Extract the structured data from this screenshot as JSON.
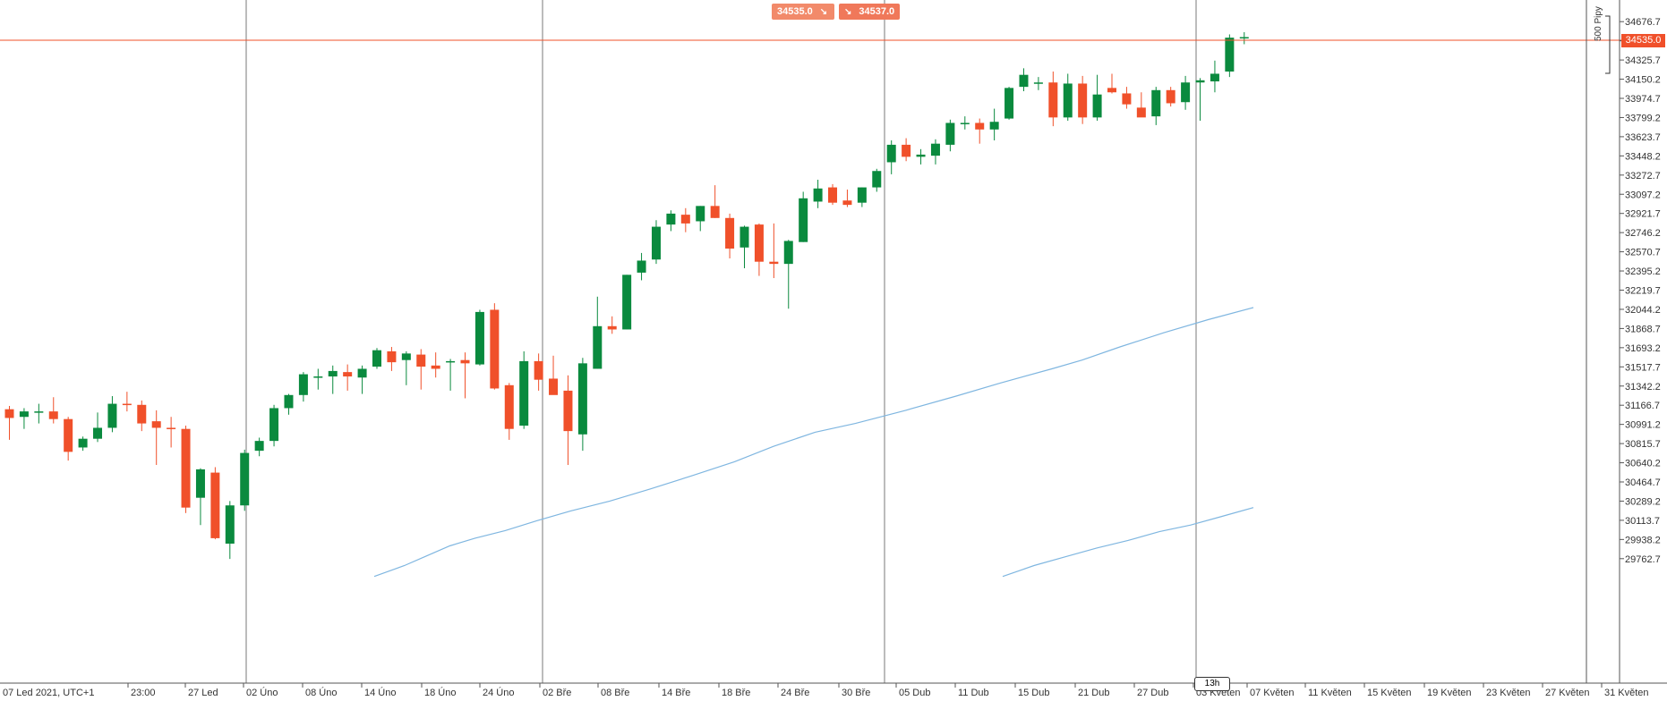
{
  "price_tags": {
    "bid": "34535.0",
    "ask": "34537.0",
    "current": "34535.0",
    "pips": "500 Pipy",
    "timer": "13h"
  },
  "colors": {
    "up": "#0a8a3e",
    "down": "#f0502a",
    "ma": "#7fb6e0",
    "grid": "#7a7a7a",
    "priceline": "#f0502a"
  },
  "chart_data": {
    "type": "candlestick",
    "ylim": [
      29620,
      34760
    ],
    "y_ticks": [
      "34676.7",
      "34501.2",
      "34325.7",
      "34150.2",
      "33974.7",
      "33799.2",
      "33623.7",
      "33448.2",
      "33272.7",
      "33097.2",
      "32921.7",
      "32746.2",
      "32570.7",
      "32395.2",
      "32219.7",
      "32044.2",
      "31868.7",
      "31693.2",
      "31517.7",
      "31342.2",
      "31166.7",
      "30991.2",
      "30815.7",
      "30640.2",
      "30464.7",
      "30289.2",
      "30113.7",
      "29938.2",
      "29762.7"
    ],
    "x_labels": [
      "07 Led 2021, UTC+1",
      "23:00",
      "27 Led",
      "02 Úno",
      "08 Úno",
      "14 Úno",
      "18 Úno",
      "24 Úno",
      "02 Bře",
      "08 Bře",
      "14 Bře",
      "18 Bře",
      "24 Bře",
      "30 Bře",
      "05 Dub",
      "11 Dub",
      "15 Dub",
      "21 Dub",
      "27 Dub",
      "03 Květen",
      "07 Květen",
      "11 Květen",
      "15 Květen",
      "19 Květen",
      "23 Květen",
      "27 Květen",
      "31 Květen"
    ],
    "candles": [
      {
        "o": 31130,
        "h": 31160,
        "l": 30850,
        "c": 31050
      },
      {
        "o": 31060,
        "h": 31140,
        "l": 30950,
        "c": 31110
      },
      {
        "o": 31100,
        "h": 31180,
        "l": 31000,
        "c": 31110
      },
      {
        "o": 31110,
        "h": 31240,
        "l": 31000,
        "c": 31040
      },
      {
        "o": 31040,
        "h": 31060,
        "l": 30660,
        "c": 30740
      },
      {
        "o": 30780,
        "h": 30880,
        "l": 30750,
        "c": 30860
      },
      {
        "o": 30860,
        "h": 31100,
        "l": 30830,
        "c": 30960
      },
      {
        "o": 30960,
        "h": 31250,
        "l": 30920,
        "c": 31180
      },
      {
        "o": 31180,
        "h": 31290,
        "l": 31110,
        "c": 31170
      },
      {
        "o": 31170,
        "h": 31210,
        "l": 30930,
        "c": 31000
      },
      {
        "o": 31020,
        "h": 31120,
        "l": 30620,
        "c": 30960
      },
      {
        "o": 30960,
        "h": 31060,
        "l": 30780,
        "c": 30950
      },
      {
        "o": 30950,
        "h": 30980,
        "l": 30180,
        "c": 30230
      },
      {
        "o": 30320,
        "h": 30590,
        "l": 30070,
        "c": 30580
      },
      {
        "o": 30550,
        "h": 30600,
        "l": 29940,
        "c": 29950
      },
      {
        "o": 29900,
        "h": 30290,
        "l": 29760,
        "c": 30250
      },
      {
        "o": 30250,
        "h": 30760,
        "l": 30200,
        "c": 30730
      },
      {
        "o": 30750,
        "h": 30870,
        "l": 30700,
        "c": 30840
      },
      {
        "o": 30840,
        "h": 31170,
        "l": 30790,
        "c": 31140
      },
      {
        "o": 31140,
        "h": 31270,
        "l": 31080,
        "c": 31260
      },
      {
        "o": 31260,
        "h": 31470,
        "l": 31200,
        "c": 31450
      },
      {
        "o": 31420,
        "h": 31500,
        "l": 31310,
        "c": 31430
      },
      {
        "o": 31430,
        "h": 31530,
        "l": 31270,
        "c": 31480
      },
      {
        "o": 31470,
        "h": 31540,
        "l": 31300,
        "c": 31430
      },
      {
        "o": 31420,
        "h": 31530,
        "l": 31270,
        "c": 31500
      },
      {
        "o": 31520,
        "h": 31690,
        "l": 31500,
        "c": 31670
      },
      {
        "o": 31660,
        "h": 31700,
        "l": 31480,
        "c": 31560
      },
      {
        "o": 31580,
        "h": 31660,
        "l": 31350,
        "c": 31640
      },
      {
        "o": 31630,
        "h": 31680,
        "l": 31310,
        "c": 31520
      },
      {
        "o": 31530,
        "h": 31650,
        "l": 31420,
        "c": 31500
      },
      {
        "o": 31560,
        "h": 31590,
        "l": 31300,
        "c": 31570
      },
      {
        "o": 31580,
        "h": 31650,
        "l": 31230,
        "c": 31550
      },
      {
        "o": 31540,
        "h": 32040,
        "l": 31530,
        "c": 32020
      },
      {
        "o": 32040,
        "h": 32100,
        "l": 31310,
        "c": 31320
      },
      {
        "o": 31350,
        "h": 31370,
        "l": 30850,
        "c": 30950
      },
      {
        "o": 30980,
        "h": 31660,
        "l": 30950,
        "c": 31570
      },
      {
        "o": 31570,
        "h": 31640,
        "l": 31300,
        "c": 31400
      },
      {
        "o": 31410,
        "h": 31620,
        "l": 31300,
        "c": 31260
      },
      {
        "o": 31300,
        "h": 31440,
        "l": 30620,
        "c": 30930
      },
      {
        "o": 30900,
        "h": 31600,
        "l": 30750,
        "c": 31550
      },
      {
        "o": 31500,
        "h": 32160,
        "l": 31500,
        "c": 31890
      },
      {
        "o": 31890,
        "h": 31980,
        "l": 31820,
        "c": 31860
      },
      {
        "o": 31860,
        "h": 32360,
        "l": 31860,
        "c": 32360
      },
      {
        "o": 32380,
        "h": 32560,
        "l": 32310,
        "c": 32490
      },
      {
        "o": 32500,
        "h": 32860,
        "l": 32460,
        "c": 32800
      },
      {
        "o": 32820,
        "h": 32950,
        "l": 32760,
        "c": 32920
      },
      {
        "o": 32910,
        "h": 32970,
        "l": 32750,
        "c": 32830
      },
      {
        "o": 32850,
        "h": 32990,
        "l": 32760,
        "c": 32990
      },
      {
        "o": 32990,
        "h": 33180,
        "l": 32880,
        "c": 32880
      },
      {
        "o": 32880,
        "h": 32920,
        "l": 32510,
        "c": 32600
      },
      {
        "o": 32610,
        "h": 32810,
        "l": 32420,
        "c": 32800
      },
      {
        "o": 32820,
        "h": 32830,
        "l": 32350,
        "c": 32480
      },
      {
        "o": 32480,
        "h": 32830,
        "l": 32330,
        "c": 32460
      },
      {
        "o": 32460,
        "h": 32680,
        "l": 32050,
        "c": 32670
      },
      {
        "o": 32660,
        "h": 33120,
        "l": 32660,
        "c": 33060
      },
      {
        "o": 33030,
        "h": 33230,
        "l": 32970,
        "c": 33150
      },
      {
        "o": 33160,
        "h": 33190,
        "l": 33000,
        "c": 33020
      },
      {
        "o": 33040,
        "h": 33140,
        "l": 32980,
        "c": 33000
      },
      {
        "o": 33020,
        "h": 33160,
        "l": 32980,
        "c": 33160
      },
      {
        "o": 33160,
        "h": 33330,
        "l": 33120,
        "c": 33310
      },
      {
        "o": 33390,
        "h": 33590,
        "l": 33280,
        "c": 33550
      },
      {
        "o": 33550,
        "h": 33610,
        "l": 33400,
        "c": 33440
      },
      {
        "o": 33440,
        "h": 33510,
        "l": 33370,
        "c": 33460
      },
      {
        "o": 33450,
        "h": 33600,
        "l": 33370,
        "c": 33560
      },
      {
        "o": 33550,
        "h": 33780,
        "l": 33490,
        "c": 33750
      },
      {
        "o": 33750,
        "h": 33810,
        "l": 33690,
        "c": 33750
      },
      {
        "o": 33750,
        "h": 33790,
        "l": 33560,
        "c": 33690
      },
      {
        "o": 33690,
        "h": 33880,
        "l": 33590,
        "c": 33760
      },
      {
        "o": 33790,
        "h": 34080,
        "l": 33780,
        "c": 34070
      },
      {
        "o": 34080,
        "h": 34250,
        "l": 34040,
        "c": 34190
      },
      {
        "o": 34120,
        "h": 34170,
        "l": 34050,
        "c": 34120
      },
      {
        "o": 34120,
        "h": 34220,
        "l": 33720,
        "c": 33800
      },
      {
        "o": 33800,
        "h": 34200,
        "l": 33770,
        "c": 34110
      },
      {
        "o": 34110,
        "h": 34180,
        "l": 33740,
        "c": 33800
      },
      {
        "o": 33800,
        "h": 34190,
        "l": 33770,
        "c": 34010
      },
      {
        "o": 34070,
        "h": 34200,
        "l": 34020,
        "c": 34030
      },
      {
        "o": 34020,
        "h": 34080,
        "l": 33880,
        "c": 33920
      },
      {
        "o": 33890,
        "h": 34030,
        "l": 33820,
        "c": 33800
      },
      {
        "o": 33810,
        "h": 34080,
        "l": 33730,
        "c": 34050
      },
      {
        "o": 34050,
        "h": 34080,
        "l": 33900,
        "c": 33930
      },
      {
        "o": 33940,
        "h": 34180,
        "l": 33870,
        "c": 34120
      },
      {
        "o": 34120,
        "h": 34160,
        "l": 33770,
        "c": 34140
      },
      {
        "o": 34130,
        "h": 34320,
        "l": 34030,
        "c": 34200
      },
      {
        "o": 34220,
        "h": 34560,
        "l": 34170,
        "c": 34530
      },
      {
        "o": 34530,
        "h": 34580,
        "l": 34470,
        "c": 34535
      }
    ],
    "ma_fast": [
      [
        30280,
        29600
      ],
      [
        30520,
        29700
      ],
      [
        30680,
        29780
      ],
      [
        30880,
        29880
      ],
      [
        31080,
        29950
      ],
      [
        31320,
        30020
      ],
      [
        31570,
        30110
      ],
      [
        31840,
        30200
      ],
      [
        32150,
        30290
      ],
      [
        32470,
        30400
      ],
      [
        32800,
        30520
      ],
      [
        33140,
        30650
      ],
      [
        33450,
        30790
      ],
      [
        33780,
        30920
      ],
      [
        34100,
        31000
      ],
      [
        34500,
        31120
      ],
      [
        34900,
        31250
      ],
      [
        35250,
        31370
      ],
      [
        35660,
        31500
      ],
      [
        35900,
        31580
      ],
      [
        36200,
        31700
      ],
      [
        36550,
        31830
      ],
      [
        36900,
        31950
      ],
      [
        37260,
        32060
      ]
    ],
    "ma_slow": [
      [
        38200,
        29600
      ],
      [
        38600,
        29700
      ],
      [
        39000,
        29780
      ],
      [
        39400,
        29860
      ],
      [
        39800,
        29930
      ],
      [
        40200,
        30010
      ],
      [
        40600,
        30070
      ],
      [
        41000,
        30150
      ],
      [
        41400,
        30230
      ]
    ]
  }
}
